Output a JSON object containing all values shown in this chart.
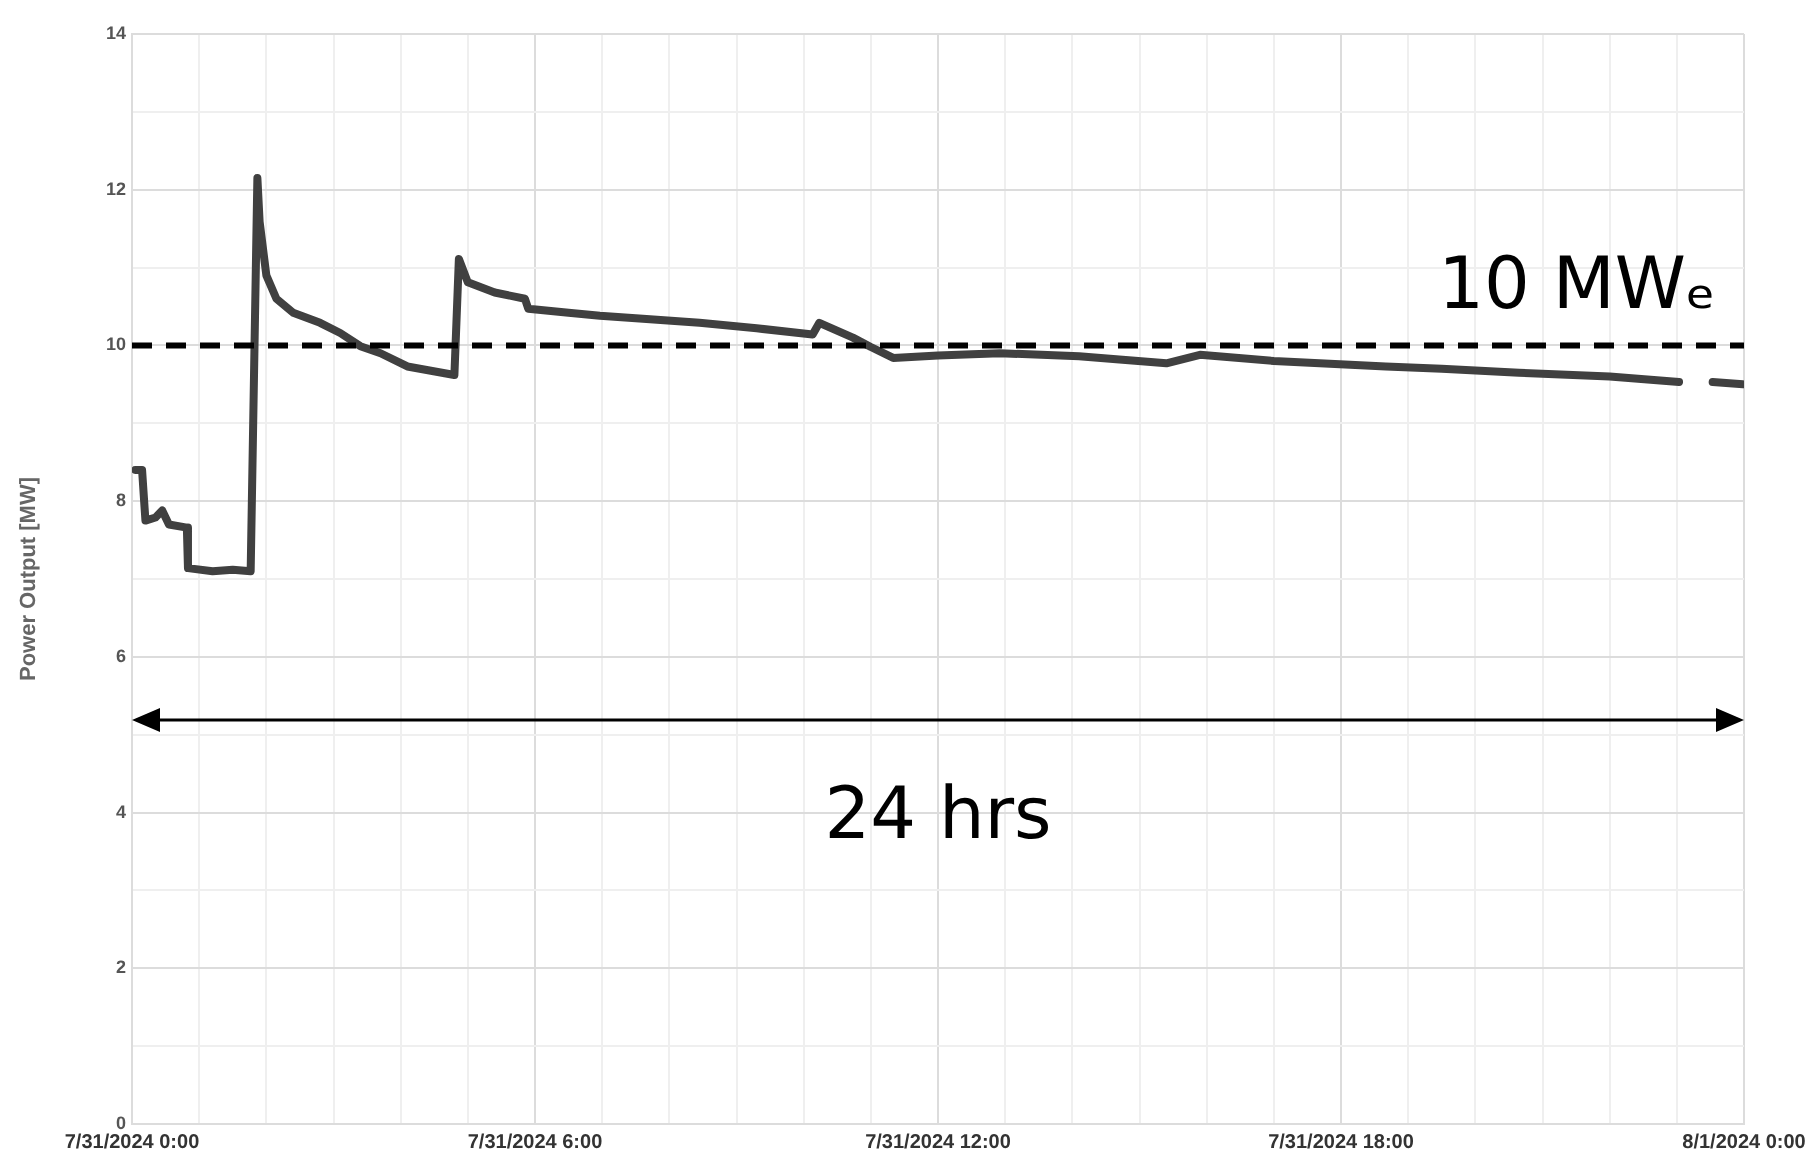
{
  "chart_data": {
    "type": "line",
    "ylabel": "Power Output [MW]",
    "x": [
      "2024-07-31T00:03",
      "2024-07-31T00:09",
      "2024-07-31T00:12",
      "2024-07-31T00:21",
      "2024-07-31T00:27",
      "2024-07-31T00:33",
      "2024-07-31T00:49",
      "2024-07-31T00:50",
      "2024-07-31T01:12",
      "2024-07-31T01:30",
      "2024-07-31T01:46",
      "2024-07-31T01:52",
      "2024-07-31T01:54",
      "2024-07-31T02:00",
      "2024-07-31T02:09",
      "2024-07-31T02:24",
      "2024-07-31T02:48",
      "2024-07-31T03:06",
      "2024-07-31T03:24",
      "2024-07-31T03:42",
      "2024-07-31T04:06",
      "2024-07-31T04:48",
      "2024-07-31T04:52",
      "2024-07-31T05:00",
      "2024-07-31T05:24",
      "2024-07-31T05:51",
      "2024-07-31T05:54",
      "2024-07-31T06:30",
      "2024-07-31T06:58",
      "2024-07-31T07:30",
      "2024-07-31T08:27",
      "2024-07-31T09:18",
      "2024-07-31T10:08",
      "2024-07-31T10:14",
      "2024-07-31T10:44",
      "2024-07-31T11:00",
      "2024-07-31T11:20",
      "2024-07-31T12:00",
      "2024-07-31T12:55",
      "2024-07-31T14:06",
      "2024-07-31T14:42",
      "2024-07-31T15:24",
      "2024-07-31T15:54",
      "2024-07-31T17:00",
      "2024-07-31T18:40",
      "2024-07-31T19:30",
      "2024-07-31T20:39",
      "2024-07-31T22:00",
      "2024-07-31T23:02",
      "2024-07-31T23:18",
      "2024-07-31T23:32",
      "2024-07-31T23:59"
    ],
    "series": [
      {
        "color": "#404040",
        "values": [
          8.4,
          8.4,
          7.75,
          7.79,
          7.88,
          7.7,
          7.66,
          7.14,
          7.1,
          7.12,
          7.1,
          12.15,
          11.59,
          10.9,
          10.6,
          10.42,
          10.29,
          10.16,
          9.99,
          9.9,
          9.73,
          9.62,
          11.11,
          10.81,
          10.68,
          10.6,
          10.47,
          10.42,
          10.38,
          10.35,
          10.29,
          10.22,
          10.14,
          10.29,
          10.1,
          9.98,
          9.84,
          9.87,
          9.9,
          9.86,
          9.82,
          9.77,
          9.88,
          9.8,
          9.73,
          9.7,
          9.65,
          9.6,
          9.53,
          null,
          9.53,
          9.5
        ]
      }
    ],
    "xlim": [
      "2024-07-31T00:00",
      "2024-08-01T00:00"
    ],
    "xticks": [
      {
        "value": "2024-07-31T00:00",
        "label": "7/31/2024 0:00"
      },
      {
        "value": "2024-07-31T01:00",
        "label": null
      },
      {
        "value": "2024-07-31T02:00",
        "label": null
      },
      {
        "value": "2024-07-31T03:00",
        "label": null
      },
      {
        "value": "2024-07-31T04:00",
        "label": null
      },
      {
        "value": "2024-07-31T05:00",
        "label": null
      },
      {
        "value": "2024-07-31T06:00",
        "label": "7/31/2024 6:00"
      },
      {
        "value": "2024-07-31T07:00",
        "label": null
      },
      {
        "value": "2024-07-31T08:00",
        "label": null
      },
      {
        "value": "2024-07-31T09:00",
        "label": null
      },
      {
        "value": "2024-07-31T10:00",
        "label": null
      },
      {
        "value": "2024-07-31T11:00",
        "label": null
      },
      {
        "value": "2024-07-31T12:00",
        "label": "7/31/2024 12:00"
      },
      {
        "value": "2024-07-31T13:00",
        "label": null
      },
      {
        "value": "2024-07-31T14:00",
        "label": null
      },
      {
        "value": "2024-07-31T15:00",
        "label": null
      },
      {
        "value": "2024-07-31T16:00",
        "label": null
      },
      {
        "value": "2024-07-31T17:00",
        "label": null
      },
      {
        "value": "2024-07-31T18:00",
        "label": "7/31/2024 18:00"
      },
      {
        "value": "2024-07-31T19:00",
        "label": null
      },
      {
        "value": "2024-07-31T20:00",
        "label": null
      },
      {
        "value": "2024-07-31T21:00",
        "label": null
      },
      {
        "value": "2024-07-31T22:00",
        "label": null
      },
      {
        "value": "2024-07-31T23:00",
        "label": null
      },
      {
        "value": "2024-08-01T00:00",
        "label": "8/1/2024 0:00"
      }
    ],
    "ylim": [
      0,
      14
    ],
    "yticks": [
      0,
      {
        "value": 1,
        "label": null
      },
      2,
      {
        "value": 3,
        "label": null
      },
      4,
      {
        "value": 5,
        "label": null
      },
      6,
      {
        "value": 7,
        "label": null
      },
      8,
      {
        "value": 9,
        "label": null
      },
      10,
      {
        "value": 11,
        "label": null
      },
      12,
      {
        "value": 13,
        "label": null
      },
      14
    ],
    "grid": true,
    "legend": false,
    "marker": "none",
    "line_style": "solid",
    "ref_lines": [
      {
        "axis": "y",
        "value": 10,
        "label": "10 MWₑ",
        "color": "#000000",
        "line_style": "dashed"
      }
    ],
    "annotations": [
      "24 hrs"
    ]
  }
}
